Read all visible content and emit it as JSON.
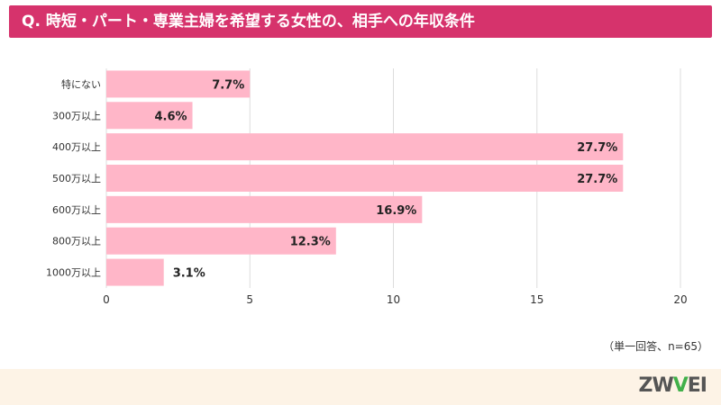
{
  "header": {
    "title": "Q. 時短・パート・専業主婦を希望する女性の、相手への年収条件"
  },
  "chart_data": {
    "type": "bar",
    "orientation": "horizontal",
    "title": "Q. 時短・パート・専業主婦を希望する女性の、相手への年収条件",
    "categories": [
      "特にない",
      "300万以上",
      "400万以上",
      "500万以上",
      "600万以上",
      "800万以上",
      "1000万以上"
    ],
    "counts": [
      5,
      3,
      18,
      18,
      11,
      8,
      2
    ],
    "percent_labels": [
      "7.7%",
      "4.6%",
      "27.7%",
      "27.7%",
      "16.9%",
      "12.3%",
      "3.1%"
    ],
    "xlim": [
      0,
      20
    ],
    "xticks": [
      0,
      5,
      10,
      15,
      20
    ],
    "grid": "vertical",
    "bar_color": "#ffb6c8"
  },
  "footer": {
    "note": "（単一回答、n=65）",
    "logo_prefix": "ZW",
    "logo_v": "V",
    "logo_suffix": "EI"
  }
}
